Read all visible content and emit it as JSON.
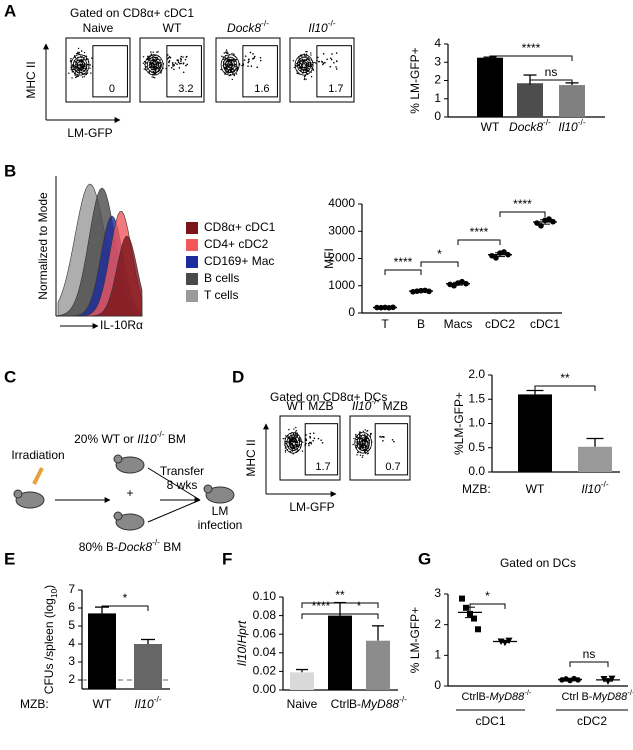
{
  "panel_letters": [
    "A",
    "B",
    "C",
    "D",
    "E",
    "F",
    "G"
  ],
  "panel_a": {
    "header": "Gated on CD8α+ cDC1",
    "y_label": "MHC II",
    "x_label": "LM-GFP",
    "plots": [
      {
        "title": "Naive",
        "gate": 0
      },
      {
        "title": "WT",
        "gate": 3.2
      },
      {
        "title": "Dock8-/-",
        "gate": 1.6
      },
      {
        "title": "Il10-/-",
        "gate": 1.7
      }
    ]
  },
  "panel_b": {
    "y_label": "Normalized to Mode",
    "x_label": "IL-10Rα",
    "legend": [
      {
        "name": "CD8α+ cDC1",
        "color": "#7a1418"
      },
      {
        "name": "CD4+ cDC2",
        "color": "#f0585c"
      },
      {
        "name": "CD169+ Mac",
        "color": "#1c2a9c"
      },
      {
        "name": "B cells",
        "color": "#4a4a4a"
      },
      {
        "name": "T cells",
        "color": "#9a9a9a"
      }
    ]
  },
  "panel_c": {
    "irradiation": "Irradiation",
    "donor_1": "20% WT or Il10-/- BM",
    "plus": "+",
    "donor_2": "80% B-Dock8-/- BM",
    "transfer": [
      "Transfer",
      "8 wks"
    ],
    "infection": [
      "LM",
      "infection"
    ]
  },
  "panel_d": {
    "header": "Gated on CD8α+ DCs",
    "y_label": "MHC II",
    "x_label": "LM-GFP",
    "plots": [
      {
        "title": "WT MZB",
        "gate": 1.7
      },
      {
        "title": "Il10-/- MZB",
        "gate": 0.7
      }
    ]
  },
  "chart_data": [
    {
      "type": "bar",
      "y_label": "% LM-GFP+",
      "categories": [
        "WT",
        "Dock8-/-",
        "Il10-/-"
      ],
      "values": [
        3.25,
        1.85,
        1.75
      ],
      "errors": [
        0.03,
        0.45,
        0.12
      ],
      "colors": [
        "#000000",
        "#4d4d4d",
        "#808080"
      ],
      "ylim": [
        0,
        4
      ],
      "yticks": [
        0,
        1,
        2,
        3,
        4
      ],
      "annotations": [
        "****",
        "ns"
      ]
    },
    {
      "type": "scatter",
      "y_label": "MFI",
      "categories": [
        "T",
        "B",
        "Macs",
        "cDC2",
        "cDC1"
      ],
      "values": [
        200,
        805,
        1075,
        2140,
        3340
      ],
      "errors": [
        10,
        25,
        50,
        70,
        80
      ],
      "points": [
        [
          200,
          195,
          205,
          190,
          210
        ],
        [
          780,
          800,
          820,
          830,
          795
        ],
        [
          1050,
          1000,
          1100,
          1150,
          1075
        ],
        [
          2100,
          2020,
          2200,
          2240,
          2140
        ],
        [
          3300,
          3200,
          3400,
          3450,
          3350
        ]
      ],
      "colors": [
        "#000000",
        "#000000",
        "#000000",
        "#000000",
        "#000000"
      ],
      "ylim": [
        0,
        4000
      ],
      "yticks": [
        0,
        1000,
        2000,
        3000,
        4000
      ],
      "annotations": [
        "****",
        "*",
        "****",
        "****"
      ]
    },
    {
      "type": "bar",
      "y_label": "%LM-GFP+",
      "category_title": "MZB:",
      "categories": [
        "WT",
        "Il10-/-"
      ],
      "values": [
        1.6,
        0.52
      ],
      "errors": [
        0.08,
        0.17
      ],
      "colors": [
        "#000000",
        "#999999"
      ],
      "ylim": [
        0,
        2
      ],
      "yticks": [
        {
          "value": 0,
          "label": "0.0"
        },
        0.5,
        {
          "value": 1,
          "label": "1.0"
        },
        1.5,
        {
          "value": 2,
          "label": "2.0"
        }
      ],
      "annotations": [
        "**"
      ]
    },
    {
      "type": "bar",
      "y_label": "CFUs /spleen (log10)",
      "category_title": "MZB:",
      "categories": [
        "WT",
        "Il10-/-"
      ],
      "values": [
        5.7,
        4.0
      ],
      "errors": [
        0.35,
        0.25
      ],
      "colors": [
        "#000000",
        "#666666"
      ],
      "ylim": [
        1.5,
        7
      ],
      "yticks": [
        2,
        3,
        4,
        5,
        6,
        7
      ],
      "hline": 2,
      "annotations": [
        "*"
      ]
    },
    {
      "type": "bar",
      "y_label": "Il10/Hprt",
      "categories": [
        "Naive",
        "Ctrl",
        "B-MyD88-/-"
      ],
      "values": [
        0.019,
        0.08,
        0.053
      ],
      "errors": [
        0.003,
        0.014,
        0.016
      ],
      "colors": [
        "#d9d9d9",
        "#000000",
        "#8c8c8c"
      ],
      "ylim": [
        0,
        0.1
      ],
      "yticks": [
        {
          "value": 0,
          "label": "0.00"
        },
        0.02,
        0.04,
        0.06,
        0.08,
        {
          "value": 0.1,
          "label": "0.10"
        }
      ],
      "annotations": [
        "****",
        "**",
        "*"
      ]
    },
    {
      "type": "scatter",
      "title": "Gated on DCs",
      "y_label": "% LM-GFP+",
      "categories": [
        "Ctrl",
        "B-MyD88-/-",
        "Ctrl",
        "B-MyD88-/-"
      ],
      "groups": [
        "cDC1",
        "cDC2"
      ],
      "values": [
        2.4,
        1.45,
        0.21,
        0.2
      ],
      "errors": [
        0.17,
        0.03,
        0.02,
        0.04
      ],
      "points": [
        [
          2.85,
          2.55,
          2.35,
          2.2,
          1.85
        ],
        [
          1.45,
          1.41,
          1.48
        ],
        [
          0.2,
          0.23,
          0.18,
          0.24,
          0.2
        ],
        [
          0.23,
          0.15,
          0.24
        ]
      ],
      "colors": [
        "#000000",
        "#000000",
        "#000000",
        "#000000"
      ],
      "ylim": [
        0,
        3
      ],
      "yticks": [
        0,
        1,
        2,
        3
      ],
      "annotations": [
        "*",
        "ns"
      ]
    }
  ]
}
